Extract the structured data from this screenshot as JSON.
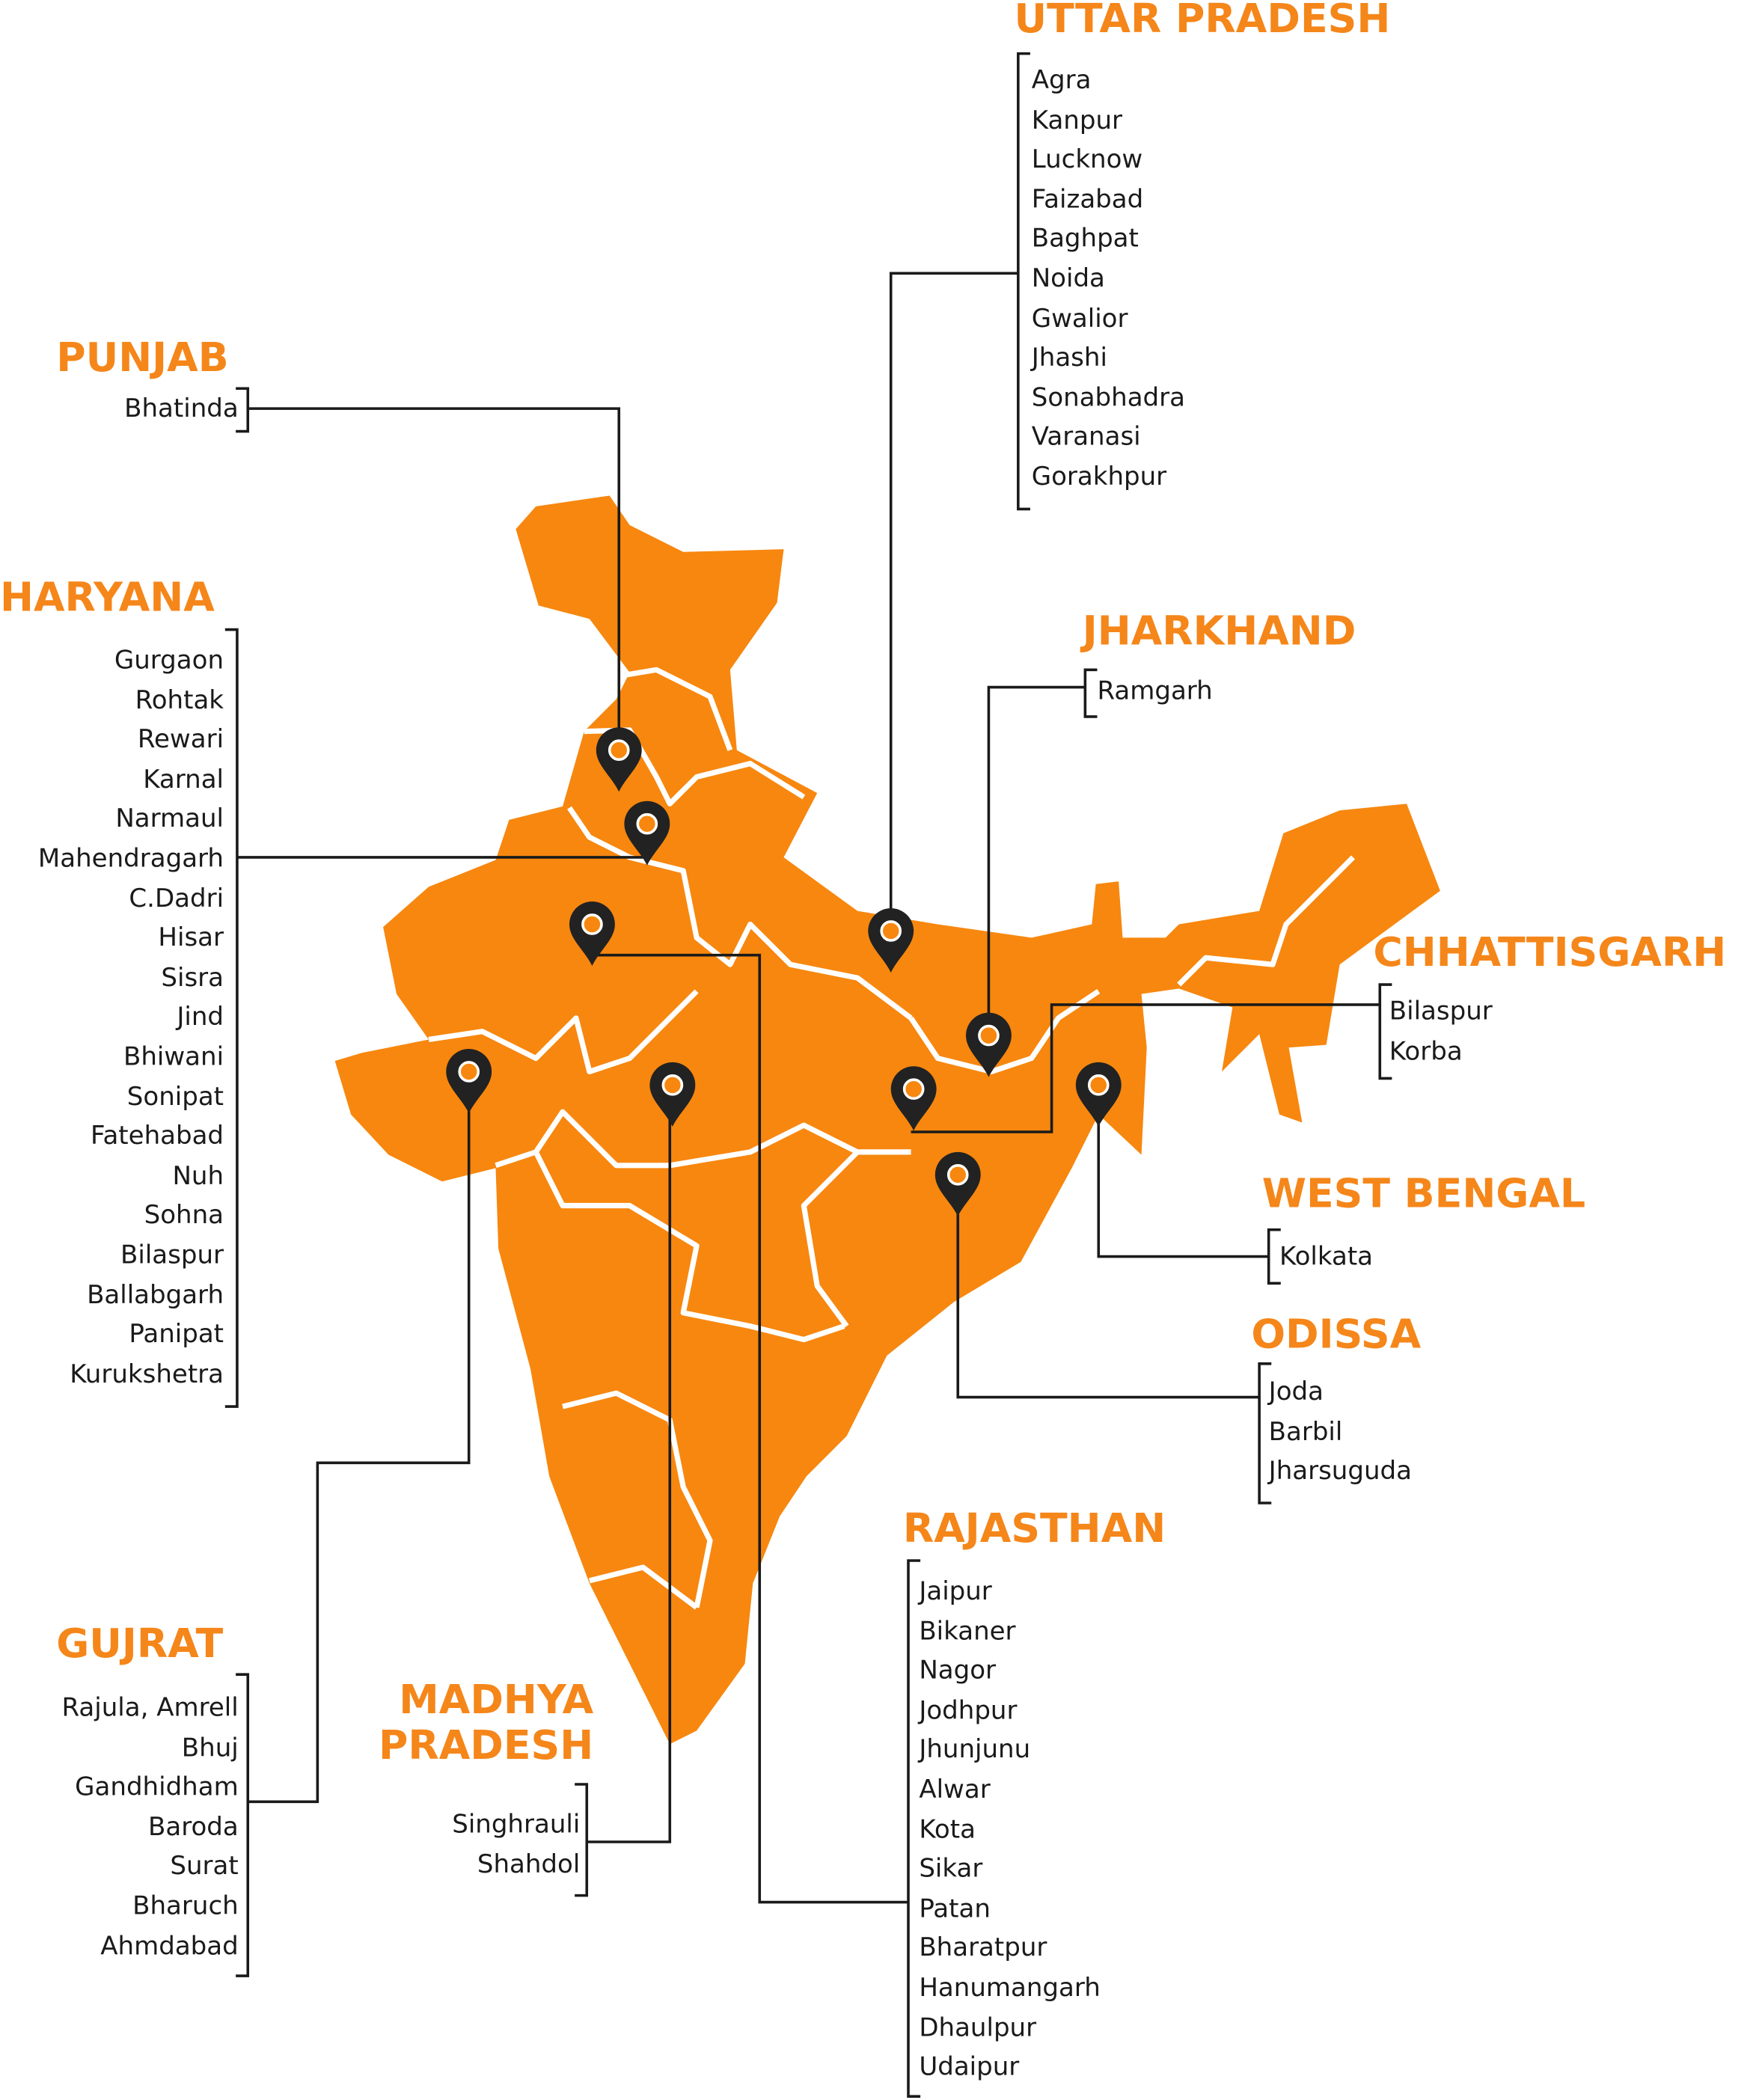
{
  "regions": [
    {
      "name": "UTTAR PRADESH",
      "cities": [
        "Agra",
        "Kanpur",
        "Lucknow",
        "Faizabad",
        "Baghpat",
        "Noida",
        "Gwalior",
        "Jhashi",
        "Sonabhadra",
        "Varanasi",
        "Gorakhpur"
      ]
    },
    {
      "name": "PUNJAB",
      "cities": [
        "Bhatinda"
      ]
    },
    {
      "name": "HARYANA",
      "cities": [
        "Gurgaon",
        "Rohtak",
        "Rewari",
        "Karnal",
        "Narmaul",
        "Mahendragarh",
        "C.Dadri",
        "Hisar",
        "Sisra",
        "Jind",
        "Bhiwani",
        "Sonipat",
        "Fatehabad",
        "Nuh",
        "Sohna",
        "Bilaspur",
        "Ballabgarh",
        "Panipat",
        "Kurukshetra"
      ]
    },
    {
      "name": "JHARKHAND",
      "cities": [
        "Ramgarh"
      ]
    },
    {
      "name": "CHHATTISGARH",
      "cities": [
        "Bilaspur",
        "Korba"
      ]
    },
    {
      "name": "WEST BENGAL",
      "cities": [
        "Kolkata"
      ]
    },
    {
      "name": "ODISSA",
      "cities": [
        "Joda",
        "Barbil",
        "Jharsuguda"
      ]
    },
    {
      "name": "RAJASTHAN",
      "cities": [
        "Jaipur",
        "Bikaner",
        "Nagor",
        "Jodhpur",
        "Jhunjunu",
        "Alwar",
        "Kota",
        "Sikar",
        "Patan",
        "Bharatpur",
        "Hanumangarh",
        "Dhaulpur",
        "Udaipur"
      ]
    },
    {
      "name": "GUJRAT",
      "cities": [
        "Rajula, Amrell",
        "Bhuj",
        "Gandhidham",
        "Baroda",
        "Surat",
        "Bharuch",
        "Ahmdabad"
      ]
    },
    {
      "name": "MADHYA PRADESH",
      "cities": [
        "Singhrauli",
        "Shahdol"
      ]
    }
  ]
}
